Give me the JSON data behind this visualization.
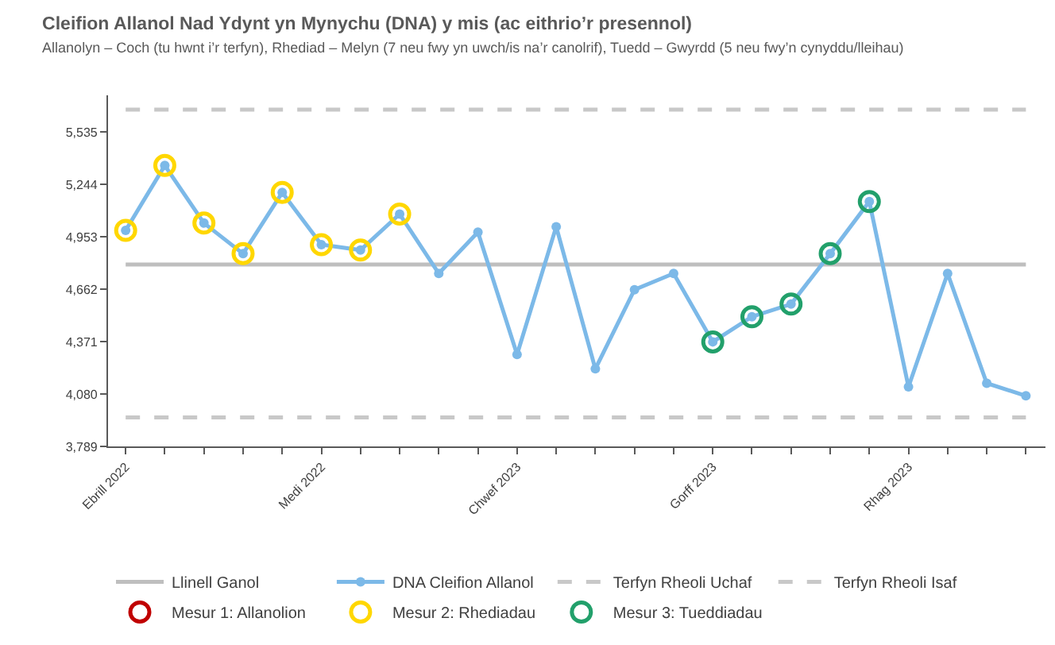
{
  "chart_data": {
    "type": "line",
    "title": "Cleifion Allanol Nad Ydynt yn Mynychu (DNA) y mis (ac eithrio’r presennol)",
    "subtitle": "Allanolyn – Coch (tu hwnt i’r terfyn), Rhediad – Melyn (7 neu fwy yn uwch/is na’r canolrif), Tuedd – Gwyrdd (5 neu fwy’n cynyddu/lleihau)",
    "categories": [
      "Ebrill 2022",
      null,
      null,
      null,
      null,
      "Medi 2022",
      null,
      null,
      null,
      null,
      "Chwef 2023",
      null,
      null,
      null,
      null,
      "Gorff 2023",
      null,
      null,
      null,
      null,
      "Rhag 2023",
      null,
      null,
      null
    ],
    "series": [
      {
        "name": "Llinell Ganol",
        "color": "#bfbfbf",
        "marker": "none",
        "line_style": "solid",
        "values": [
          4800,
          4800,
          4800,
          4800,
          4800,
          4800,
          4800,
          4800,
          4800,
          4800,
          4800,
          4800,
          4800,
          4800,
          4800,
          4800,
          4800,
          4800,
          4800,
          4800,
          4800,
          4800,
          4800,
          4800
        ]
      },
      {
        "name": "DNA Cleifion Allanol",
        "color": "#7cb9e8",
        "marker": "circle",
        "line_style": "solid",
        "values": [
          4990,
          5350,
          5030,
          4860,
          5200,
          4910,
          4880,
          5080,
          4750,
          4980,
          4300,
          5010,
          4220,
          4660,
          4750,
          4370,
          4510,
          4580,
          4860,
          5150,
          4120,
          4750,
          4140,
          4070
        ]
      },
      {
        "name": "Terfyn Rheoli Uchaf",
        "color": "#c8c8c8",
        "marker": "none",
        "line_style": "dashed",
        "values": [
          5660,
          5660,
          5660,
          5660,
          5660,
          5660,
          5660,
          5660,
          5660,
          5660,
          5660,
          5660,
          5660,
          5660,
          5660,
          5660,
          5660,
          5660,
          5660,
          5660,
          5660,
          5660,
          5660,
          5660
        ]
      },
      {
        "name": "Terfyn Rheoli Isaf",
        "color": "#c8c8c8",
        "marker": "none",
        "line_style": "dashed",
        "values": [
          3950,
          3950,
          3950,
          3950,
          3950,
          3950,
          3950,
          3950,
          3950,
          3950,
          3950,
          3950,
          3950,
          3950,
          3950,
          3950,
          3950,
          3950,
          3950,
          3950,
          3950,
          3950,
          3950,
          3950
        ]
      },
      {
        "name": "Mesur 1: Allanolion",
        "type": "scatter",
        "color": "#c00000",
        "marker": "circle",
        "values": [
          null,
          null,
          null,
          null,
          null,
          null,
          null,
          null,
          null,
          null,
          null,
          null,
          null,
          null,
          null,
          null,
          null,
          null,
          null,
          null,
          null,
          null,
          null,
          null
        ]
      },
      {
        "name": "Mesur 2: Rhediadau",
        "type": "scatter",
        "color": "#ffd700",
        "marker": "circle",
        "values": [
          4990,
          5350,
          5030,
          4860,
          5200,
          4910,
          4880,
          5080,
          null,
          null,
          null,
          null,
          null,
          null,
          null,
          null,
          null,
          null,
          null,
          null,
          null,
          null,
          null,
          null
        ]
      },
      {
        "name": "Mesur 3: Tueddiadau",
        "type": "scatter",
        "color": "#22a06b",
        "marker": "circle",
        "values": [
          null,
          null,
          null,
          null,
          null,
          null,
          null,
          null,
          null,
          null,
          null,
          null,
          null,
          null,
          null,
          4370,
          4510,
          4580,
          4860,
          5150,
          null,
          null,
          null,
          null
        ]
      }
    ],
    "ylim": [
      3789,
      5740
    ],
    "yticks": [
      {
        "value": 3789,
        "label": "3,789"
      },
      {
        "value": 4080,
        "label": "4,080"
      },
      {
        "value": 4371,
        "label": "4,371"
      },
      {
        "value": 4662,
        "label": "4,662"
      },
      {
        "value": 4953,
        "label": "4,953"
      },
      {
        "value": 5244,
        "label": "5,244"
      },
      {
        "value": 5535,
        "label": "5,535"
      }
    ],
    "grid": false,
    "legend": "bottom"
  }
}
